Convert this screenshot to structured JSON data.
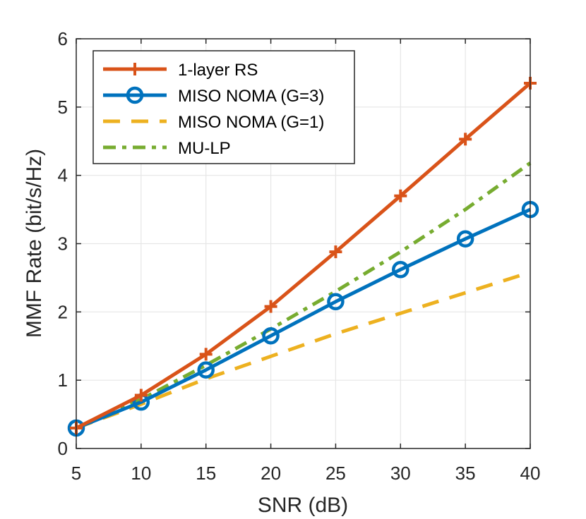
{
  "chart_data": {
    "type": "line",
    "title": "",
    "xlabel": "SNR (dB)",
    "ylabel": "MMF Rate (bit/s/Hz)",
    "xlim": [
      5,
      40
    ],
    "ylim": [
      0,
      6
    ],
    "xticks": [
      5,
      10,
      15,
      20,
      25,
      30,
      35,
      40
    ],
    "yticks": [
      0,
      1,
      2,
      3,
      4,
      5,
      6
    ],
    "grid": true,
    "legend_position": "top-left",
    "x": [
      5,
      10,
      15,
      20,
      25,
      30,
      35,
      40
    ],
    "series": [
      {
        "name": "1-layer RS",
        "values": [
          0.3,
          0.78,
          1.38,
          2.08,
          2.88,
          3.7,
          4.53,
          5.35
        ],
        "color": "#D95319",
        "style": "solid",
        "marker": "plus"
      },
      {
        "name": "MISO NOMA (G=3)",
        "values": [
          0.3,
          0.68,
          1.15,
          1.65,
          2.15,
          2.62,
          3.07,
          3.5
        ],
        "color": "#0072BD",
        "style": "solid",
        "marker": "circle"
      },
      {
        "name": "MISO NOMA (G=1)",
        "values": [
          0.3,
          0.65,
          1.02,
          1.35,
          1.68,
          1.98,
          2.28,
          2.58
        ],
        "color": "#EDB120",
        "style": "dashed",
        "marker": "none"
      },
      {
        "name": "MU-LP",
        "values": [
          0.3,
          0.72,
          1.22,
          1.75,
          2.3,
          2.88,
          3.5,
          4.18
        ],
        "color": "#77AC30",
        "style": "dashdot",
        "marker": "none"
      }
    ]
  }
}
